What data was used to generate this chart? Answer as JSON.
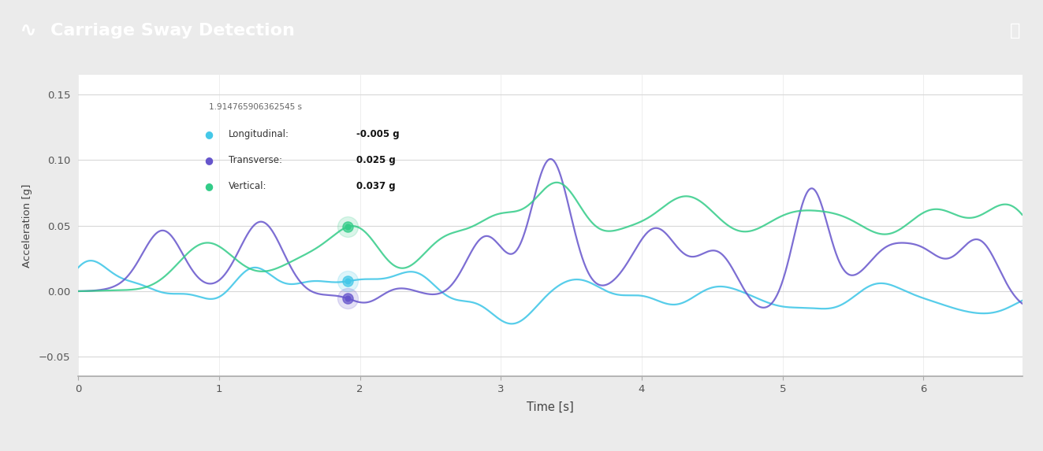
{
  "title": "Carriage Sway Detection",
  "title_bar_bg": "#1a1a1a",
  "chart_bg": "#ffffff",
  "outer_bg": "#f0f0f0",
  "xlabel": "Time [s]",
  "ylabel": "Acceleration [g]",
  "xlim": [
    0,
    6.7
  ],
  "ylim": [
    -0.065,
    0.165
  ],
  "yticks": [
    -0.05,
    0,
    0.05,
    0.1,
    0.15
  ],
  "xticks": [
    0,
    1,
    2,
    3,
    4,
    5,
    6
  ],
  "line_colors": {
    "longitudinal": "#45c8e8",
    "transverse": "#6655cc",
    "vertical": "#33cc88"
  },
  "legend_labels": [
    "Longitudinal",
    "Transverse",
    "Vertical"
  ],
  "tooltip": {
    "time": "1.914765906362545 s",
    "longitudinal": "-0.005",
    "transverse": "0.025",
    "vertical": "0.037"
  }
}
